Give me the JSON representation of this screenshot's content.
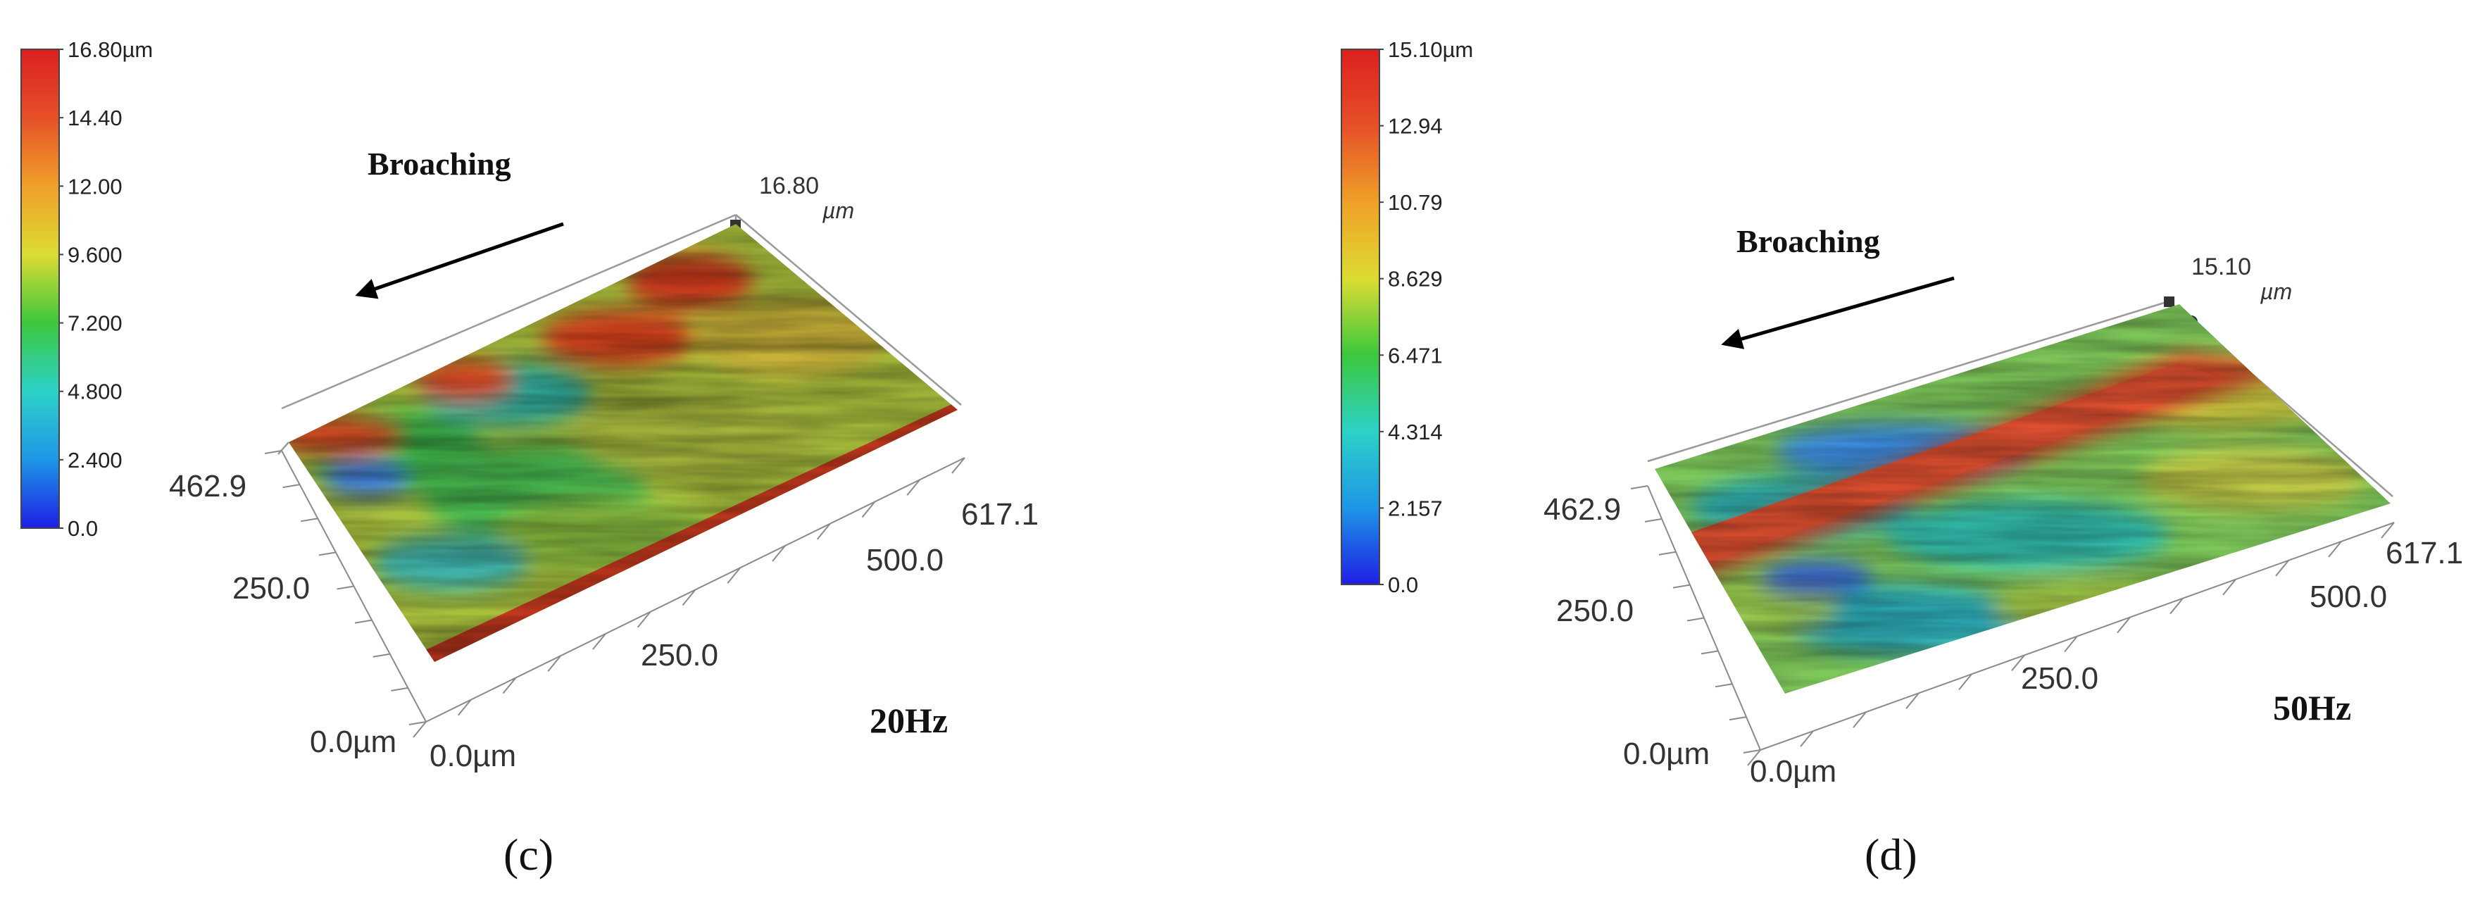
{
  "chart_data": [
    {
      "type": "surface3d",
      "panel_label": "(c)",
      "colorbar": {
        "ticks": [
          "16.80µm",
          "14.40",
          "12.00",
          "9.600",
          "7.200",
          "4.800",
          "2.400",
          "0.0"
        ],
        "range": [
          0.0,
          16.8
        ],
        "colors": [
          "#1e1ee6",
          "#1e96e6",
          "#2cd2c8",
          "#3cc83c",
          "#dcdc32",
          "#f0a028",
          "#e65028",
          "#dc2020"
        ]
      },
      "direction_label": "Broaching",
      "peak_label": [
        "16.80",
        "µm"
      ],
      "x_ticks": [
        "0.0µm",
        "250.0",
        "500.0",
        "617.1"
      ],
      "y_ticks": [
        "0.0µm",
        "250.0",
        "462.9"
      ],
      "x_range": [
        0.0,
        617.1
      ],
      "y_range": [
        0.0,
        462.9
      ],
      "z_range": [
        0.0,
        16.8
      ],
      "condition_label": "20Hz",
      "surface_pattern": "mostly green-yellow plateau with red ridges along the front edge and back-right region"
    },
    {
      "type": "surface3d",
      "panel_label": "(d)",
      "colorbar": {
        "ticks": [
          "15.10µm",
          "12.94",
          "10.79",
          "8.629",
          "6.471",
          "4.314",
          "2.157",
          "0.0"
        ],
        "range": [
          0.0,
          15.1
        ],
        "colors": [
          "#1e1ee6",
          "#1e96e6",
          "#2cd2c8",
          "#3cc83c",
          "#dcdc32",
          "#f0a028",
          "#e65028",
          "#dc2020"
        ]
      },
      "direction_label": "Broaching",
      "peak_label": [
        "15.10",
        "µm"
      ],
      "x_ticks": [
        "0.0µm",
        "250.0",
        "500.0",
        "617.1"
      ],
      "y_ticks": [
        "0.0µm",
        "250.0",
        "462.9"
      ],
      "x_range": [
        0.0,
        617.1
      ],
      "y_range": [
        0.0,
        462.9
      ],
      "z_range": [
        0.0,
        15.1
      ],
      "condition_label": "50Hz",
      "surface_pattern": "green-cyan surface with a red diagonal band across the middle"
    }
  ]
}
